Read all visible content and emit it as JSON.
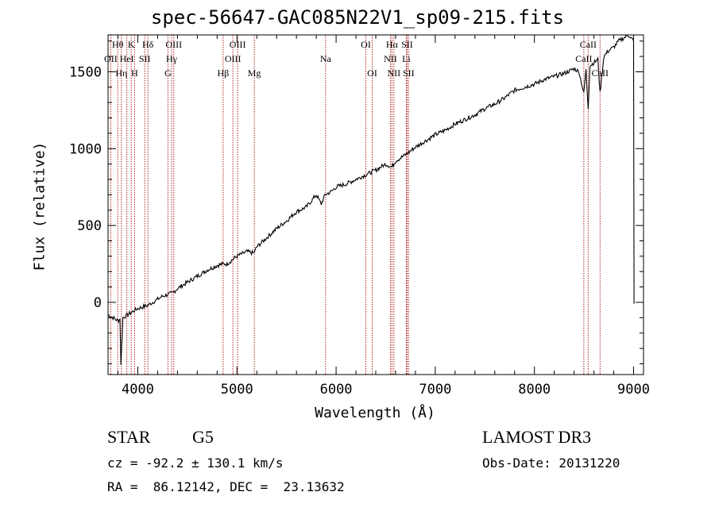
{
  "chart_data": {
    "type": "line",
    "title": "spec-56647-GAC085N22V1_sp09-215.fits",
    "xlabel": "Wavelength (Å)",
    "ylabel": "Flux (relative)",
    "xlim": [
      3700,
      9100
    ],
    "ylim": [
      -470,
      1740
    ],
    "xticks": [
      4000,
      5000,
      6000,
      7000,
      8000,
      9000
    ],
    "yticks": [
      0,
      500,
      1000,
      1500
    ],
    "ytick_labels": [
      "0",
      "500",
      "1000",
      "1500"
    ],
    "grid": false,
    "series": [
      {
        "name": "flux",
        "x": [
          3700,
          3750,
          3800,
          3820,
          3830,
          3850,
          3900,
          3950,
          4000,
          4050,
          4100,
          4150,
          4200,
          4250,
          4300,
          4350,
          4400,
          4500,
          4600,
          4700,
          4800,
          4860,
          4900,
          5000,
          5100,
          5170,
          5200,
          5300,
          5400,
          5500,
          5600,
          5700,
          5800,
          5850,
          5890,
          5950,
          6000,
          6100,
          6200,
          6300,
          6400,
          6500,
          6563,
          6600,
          6700,
          6800,
          6900,
          7000,
          7100,
          7200,
          7300,
          7400,
          7500,
          7600,
          7700,
          7800,
          7900,
          8000,
          8100,
          8200,
          8300,
          8400,
          8450,
          8498,
          8520,
          8542,
          8560,
          8600,
          8640,
          8662,
          8700,
          8750,
          8800,
          8850,
          8900,
          8950,
          9000,
          9005
        ],
        "y": [
          -80,
          -100,
          -120,
          -110,
          -400,
          -100,
          -80,
          -60,
          -40,
          -30,
          -20,
          0,
          20,
          40,
          50,
          60,
          90,
          130,
          170,
          210,
          240,
          250,
          250,
          300,
          330,
          320,
          360,
          420,
          480,
          530,
          590,
          620,
          700,
          640,
          700,
          720,
          750,
          770,
          800,
          830,
          860,
          900,
          880,
          920,
          960,
          1010,
          1050,
          1090,
          1120,
          1160,
          1190,
          1220,
          1260,
          1290,
          1330,
          1380,
          1400,
          1420,
          1450,
          1470,
          1490,
          1520,
          1500,
          1360,
          1510,
          1270,
          1540,
          1560,
          1580,
          1360,
          1600,
          1640,
          1660,
          1700,
          1720,
          1740,
          1700,
          -10
        ]
      }
    ],
    "lines": [
      {
        "label": "OII",
        "x": 3727,
        "row": 1
      },
      {
        "label": "Hθ",
        "x": 3798,
        "row": 0
      },
      {
        "label": "Hη",
        "x": 3835,
        "row": 2
      },
      {
        "label": "HeI",
        "x": 3889,
        "row": 1
      },
      {
        "label": "K",
        "x": 3934,
        "row": 0
      },
      {
        "label": "H",
        "x": 3968,
        "row": 2
      },
      {
        "label": "SII",
        "x": 4070,
        "row": 1
      },
      {
        "label": "Hδ",
        "x": 4102,
        "row": 0
      },
      {
        "label": "G",
        "x": 4304,
        "row": 2
      },
      {
        "label": "Hγ",
        "x": 4341,
        "row": 1
      },
      {
        "label": "OIII",
        "x": 4363,
        "row": 0
      },
      {
        "label": "Hβ",
        "x": 4861,
        "row": 2
      },
      {
        "label": "OIII",
        "x": 4959,
        "row": 1
      },
      {
        "label": "OIII",
        "x": 5007,
        "row": 0
      },
      {
        "label": "Mg",
        "x": 5175,
        "row": 2
      },
      {
        "label": "Na",
        "x": 5894,
        "row": 1
      },
      {
        "label": "OI",
        "x": 6300,
        "row": 0
      },
      {
        "label": "OI",
        "x": 6364,
        "row": 2
      },
      {
        "label": "NII",
        "x": 6548,
        "row": 1
      },
      {
        "label": "Hα",
        "x": 6563,
        "row": 0
      },
      {
        "label": "NII",
        "x": 6583,
        "row": 2
      },
      {
        "label": "Li",
        "x": 6708,
        "row": 1
      },
      {
        "label": "SII",
        "x": 6716,
        "row": 0
      },
      {
        "label": "SII",
        "x": 6731,
        "row": 2
      },
      {
        "label": "CaII",
        "x": 8498,
        "row": 1
      },
      {
        "label": "CaII",
        "x": 8542,
        "row": 0
      },
      {
        "label": "CaII",
        "x": 8662,
        "row": 2
      }
    ]
  },
  "info": {
    "class_label": "STAR",
    "subclass": "G5",
    "survey": "LAMOST DR3",
    "cz": "cz = -92.2 ± 130.1 km/s",
    "obs_date": "Obs-Date: 20131220",
    "coords": "RA =  86.12142, DEC =  23.13632"
  }
}
